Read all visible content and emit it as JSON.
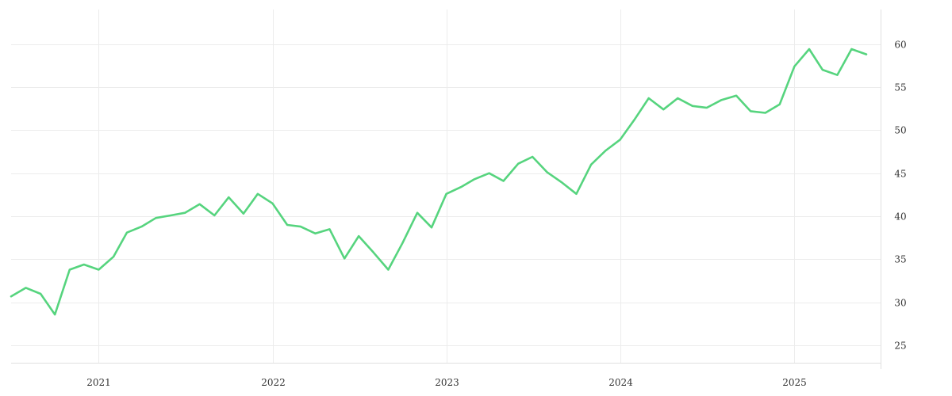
{
  "chart_data": {
    "type": "line",
    "title": "",
    "xlabel": "",
    "ylabel": "",
    "x_axis": {
      "range": [
        "2020-07-01",
        "2025-07-01"
      ],
      "ticks": [
        {
          "value": "2021-01-01",
          "label": "2021"
        },
        {
          "value": "2022-01-01",
          "label": "2022"
        },
        {
          "value": "2023-01-01",
          "label": "2023"
        },
        {
          "value": "2024-01-01",
          "label": "2024"
        },
        {
          "value": "2025-01-01",
          "label": "2025"
        }
      ]
    },
    "y_axis": {
      "range": [
        23.0,
        64.0
      ],
      "position": "right",
      "ticks": [
        25,
        30,
        35,
        40,
        45,
        50,
        55,
        60
      ]
    },
    "grid": true,
    "legend": "none",
    "color": "#56d47e",
    "series": [
      {
        "x": [
          "2020-07-01",
          "2020-08-01",
          "2020-09-01",
          "2020-10-01",
          "2020-11-01",
          "2020-12-01",
          "2021-01-01",
          "2021-02-01",
          "2021-03-01",
          "2021-04-01",
          "2021-05-01",
          "2021-06-01",
          "2021-07-01",
          "2021-08-01",
          "2021-09-01",
          "2021-10-01",
          "2021-11-01",
          "2021-12-01",
          "2022-01-01",
          "2022-02-01",
          "2022-03-01",
          "2022-04-01",
          "2022-05-01",
          "2022-06-01",
          "2022-07-01",
          "2022-08-01",
          "2022-09-01",
          "2022-10-01",
          "2022-11-01",
          "2022-12-01",
          "2023-01-01",
          "2023-02-01",
          "2023-03-01",
          "2023-04-01",
          "2023-05-01",
          "2023-06-01",
          "2023-07-01",
          "2023-08-01",
          "2023-09-01",
          "2023-10-01",
          "2023-11-01",
          "2023-12-01",
          "2024-01-01",
          "2024-02-01",
          "2024-03-01",
          "2024-04-01",
          "2024-05-01",
          "2024-06-01",
          "2024-07-01",
          "2024-08-01",
          "2024-09-01",
          "2024-10-01",
          "2024-11-01",
          "2024-12-01",
          "2025-01-01",
          "2025-02-01",
          "2025-03-01",
          "2025-04-01",
          "2025-05-01",
          "2025-06-01"
        ],
        "values": [
          30.7,
          31.7,
          31.0,
          28.6,
          33.8,
          34.4,
          33.8,
          35.3,
          38.1,
          38.8,
          39.8,
          40.1,
          40.4,
          41.4,
          40.1,
          42.2,
          40.3,
          42.6,
          41.5,
          39.0,
          38.8,
          38.0,
          38.5,
          35.1,
          37.7,
          35.8,
          33.8,
          36.9,
          40.4,
          38.7,
          42.6,
          43.4,
          44.3,
          45.0,
          44.1,
          46.1,
          46.9,
          45.1,
          43.9,
          42.6,
          46.0,
          47.6,
          48.9,
          51.3,
          53.7,
          52.4,
          53.7,
          52.8,
          52.6,
          53.5,
          54.0,
          52.2,
          52.0,
          53.0,
          57.4,
          59.4,
          57.0,
          56.4,
          59.4,
          58.8
        ]
      }
    ]
  }
}
